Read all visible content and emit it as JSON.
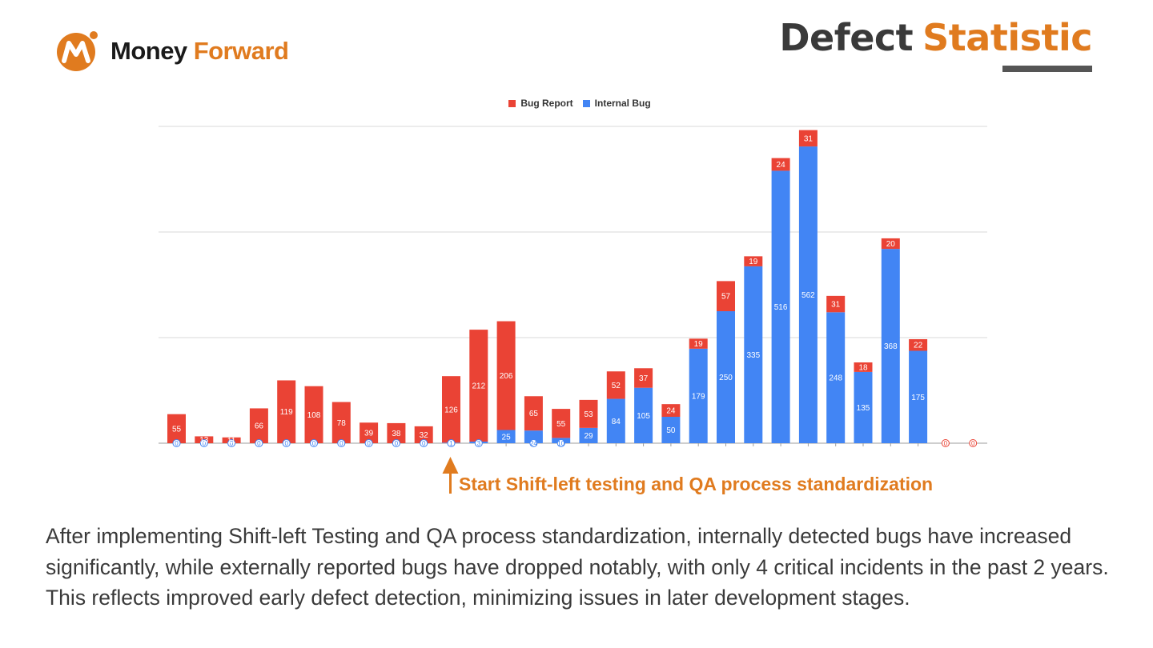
{
  "brand": {
    "word1": "Money",
    "word2": "Forward",
    "accent": "#e07b1f"
  },
  "title": {
    "part1": "Defect",
    "part2": "Statistic"
  },
  "chart_data": {
    "type": "bar",
    "stacked": true,
    "series": [
      {
        "name": "Internal Bug",
        "color": "#4285f4",
        "values": [
          0,
          0,
          0,
          0,
          0,
          0,
          0,
          0,
          0,
          0,
          1,
          3,
          25,
          24,
          10,
          29,
          84,
          105,
          50,
          179,
          250,
          335,
          516,
          562,
          248,
          135,
          368,
          175,
          0,
          0
        ]
      },
      {
        "name": "Bug Report",
        "color": "#ea4335",
        "values": [
          55,
          13,
          11,
          66,
          119,
          108,
          78,
          39,
          38,
          32,
          126,
          212,
          206,
          65,
          55,
          53,
          52,
          37,
          24,
          19,
          57,
          19,
          24,
          31,
          31,
          18,
          20,
          22,
          0,
          0
        ]
      }
    ],
    "ylim": [
      0,
      600
    ],
    "gridlines": [
      0,
      200,
      400,
      600
    ],
    "legend_position": "top-center",
    "annotation": {
      "text": "Start Shift-left testing and QA process standardization",
      "at_index": 10
    }
  },
  "summary": "After implementing Shift-left Testing and QA process standardization, internally detected bugs have increased significantly, while externally reported bugs have dropped notably, with only 4 critical incidents in the past 2 years. This reflects improved early defect detection, minimizing issues in later development stages."
}
